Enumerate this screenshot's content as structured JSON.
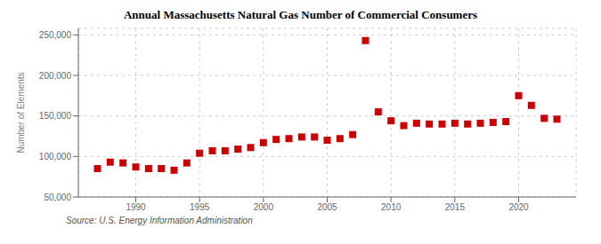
{
  "chart_data": {
    "type": "scatter",
    "title": "Annual Massachusetts Natural Gas Number of Commercial Consumers",
    "ylabel": "Number of Elements",
    "annotations": [
      "Source: U.S. Energy Information Administration"
    ],
    "color": "#cc0000",
    "marker": "square",
    "grid": true,
    "x": [
      1987,
      1988,
      1989,
      1990,
      1991,
      1992,
      1993,
      1994,
      1995,
      1996,
      1997,
      1998,
      1999,
      2000,
      2001,
      2002,
      2003,
      2004,
      2005,
      2006,
      2007,
      2008,
      2009,
      2010,
      2011,
      2012,
      2013,
      2014,
      2015,
      2016,
      2017,
      2018,
      2019,
      2020,
      2021,
      2022,
      2023
    ],
    "values": [
      85000,
      93000,
      92000,
      87000,
      85000,
      85000,
      83000,
      92000,
      104000,
      107000,
      107000,
      109000,
      111000,
      117000,
      121000,
      122000,
      124000,
      124000,
      120000,
      122000,
      127000,
      243000,
      155000,
      144000,
      138000,
      141000,
      140000,
      140000,
      141000,
      140000,
      141000,
      142000,
      143000,
      175000,
      163000,
      147000,
      146000
    ],
    "xlim": [
      1985.5,
      2024.5
    ],
    "xticks": [
      1990,
      1995,
      2000,
      2005,
      2010,
      2015,
      2020
    ],
    "ylim": [
      50000,
      258000
    ],
    "yticks": [
      {
        "value": 50000,
        "label": "50,000"
      },
      {
        "value": 100000,
        "label": "100,000"
      },
      {
        "value": 150000,
        "label": "150,000"
      },
      {
        "value": 200000,
        "label": "200,000"
      },
      {
        "value": 250000,
        "label": "250,000"
      }
    ]
  }
}
